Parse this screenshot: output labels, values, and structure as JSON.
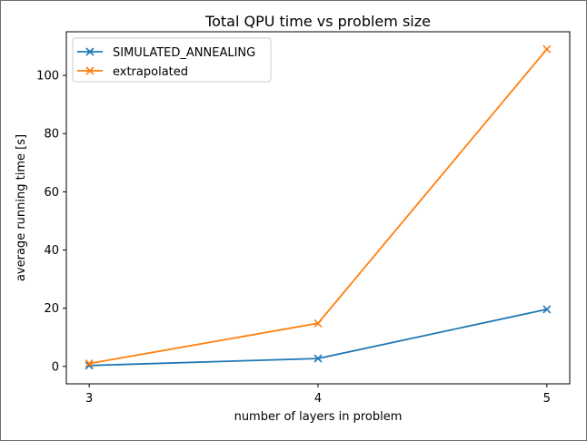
{
  "chart_data": {
    "type": "line",
    "title": "Total QPU time vs problem size",
    "xlabel": "number of layers in problem",
    "ylabel": "average running time [s]",
    "x": [
      3,
      4,
      5
    ],
    "xlim": [
      2.9,
      5.1
    ],
    "ylim": [
      -6,
      115
    ],
    "xticks": [
      3,
      4,
      5
    ],
    "yticks": [
      0,
      20,
      40,
      60,
      80,
      100
    ],
    "grid": false,
    "legend_position": "top-left",
    "marker": "x",
    "series": [
      {
        "name": "SIMULATED_ANNEALING",
        "color": "#1f77b4",
        "values": [
          0.3,
          2.7,
          19.6
        ]
      },
      {
        "name": "extrapolated",
        "color": "#ff7f0e",
        "values": [
          1.0,
          14.8,
          109.0
        ]
      }
    ]
  }
}
